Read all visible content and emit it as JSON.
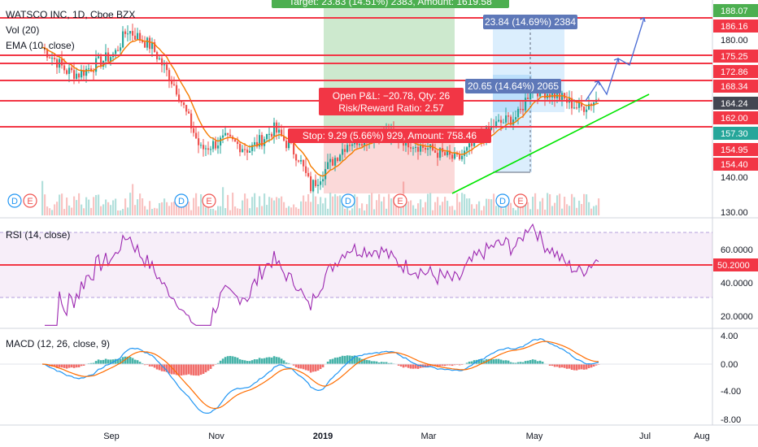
{
  "panes": {
    "price": {
      "title": "WATSCO INC, 1D, Cboe BZX",
      "indicators": [
        "Vol (20)",
        "EMA (10, close)"
      ],
      "axis_ticks": [
        "180.00",
        "140.00",
        "130.00"
      ],
      "price_labels": [
        {
          "text": "188.07",
          "color": "#4caf50"
        },
        {
          "text": "186.16",
          "color": "#f23645"
        },
        {
          "text": "175.25",
          "color": "#f23645"
        },
        {
          "text": "172.86",
          "color": "#f23645"
        },
        {
          "text": "168.34",
          "color": "#f23645"
        },
        {
          "text": "164.24",
          "color": "#434651"
        },
        {
          "text": "162.00",
          "color": "#f23645"
        },
        {
          "text": "157.30",
          "color": "#26a69a"
        },
        {
          "text": "154.95",
          "color": "#f23645"
        },
        {
          "text": "154.40",
          "color": "#f23645"
        }
      ]
    },
    "rsi": {
      "title": "RSI (14, close)",
      "axis_ticks": [
        "60.0000",
        "40.0000",
        "20.0000"
      ],
      "line_label": "50.2000"
    },
    "macd": {
      "title": "MACD (12, 26, close, 9)",
      "axis_ticks": [
        "4.00",
        "0.00",
        "-4.00",
        "-8.00"
      ]
    }
  },
  "annotations": {
    "target": "Target: 23.83 (14.51%) 2383, Amount: 1619.58",
    "upper_measure": "23.84 (14.69%) 2384",
    "lower_measure": "20.65 (14.64%) 2065",
    "open_pl": "Open P&L: −20.78, Qty: 26",
    "risk_reward": "Risk/Reward Ratio: 2.57",
    "stop": "Stop: 9.29 (5.66%) 929, Amount: 758.46"
  },
  "event_markers": [
    "D",
    "E",
    "D",
    "E",
    "D",
    "E",
    "D",
    "E"
  ],
  "time_axis": [
    "Sep",
    "Nov",
    "2019",
    "Mar",
    "May",
    "Jul",
    "Aug"
  ],
  "colors": {
    "up": "#26a69a",
    "down": "#ef5350",
    "ema": "#f57c00",
    "level": "#f23645",
    "rsi": "#9c27b0",
    "macd": "#2196f3",
    "signal": "#ff6d00",
    "trend": "#00e600",
    "target_zone": "#4caf50",
    "stop_zone": "#ef5350"
  },
  "chart_data": {
    "type": "candlestick",
    "title": "WATSCO INC, 1D, Cboe BZX",
    "close_series": [
      {
        "date": "2018-07-23",
        "close": 178
      },
      {
        "date": "2018-08-06",
        "close": 171
      },
      {
        "date": "2018-08-13",
        "close": 170
      },
      {
        "date": "2018-09-03",
        "close": 176
      },
      {
        "date": "2018-09-10",
        "close": 183
      },
      {
        "date": "2018-09-24",
        "close": 178
      },
      {
        "date": "2018-10-08",
        "close": 166
      },
      {
        "date": "2018-10-22",
        "close": 148
      },
      {
        "date": "2018-11-05",
        "close": 151
      },
      {
        "date": "2018-11-19",
        "close": 148
      },
      {
        "date": "2018-12-03",
        "close": 154
      },
      {
        "date": "2018-12-17",
        "close": 146
      },
      {
        "date": "2018-12-24",
        "close": 137
      },
      {
        "date": "2019-01-14",
        "close": 150
      },
      {
        "date": "2019-02-04",
        "close": 153
      },
      {
        "date": "2019-02-25",
        "close": 149
      },
      {
        "date": "2019-03-18",
        "close": 145
      },
      {
        "date": "2019-04-08",
        "close": 155
      },
      {
        "date": "2019-04-22",
        "close": 158
      },
      {
        "date": "2019-04-29",
        "close": 166
      },
      {
        "date": "2019-05-13",
        "close": 164
      },
      {
        "date": "2019-05-27",
        "close": 160
      },
      {
        "date": "2019-06-07",
        "close": 163
      }
    ],
    "horizontal_levels": [
      186.16,
      175.25,
      172.86,
      168.34,
      164.24,
      157.3
    ],
    "last_price": 162.0,
    "projection_path": [
      164,
      170,
      168,
      176,
      174,
      186
    ],
    "rsi": {
      "level_line": 50.2,
      "range": [
        15,
        80
      ]
    },
    "macd": {
      "range": [
        -8,
        4
      ]
    },
    "ylim": [
      128,
      190
    ]
  }
}
